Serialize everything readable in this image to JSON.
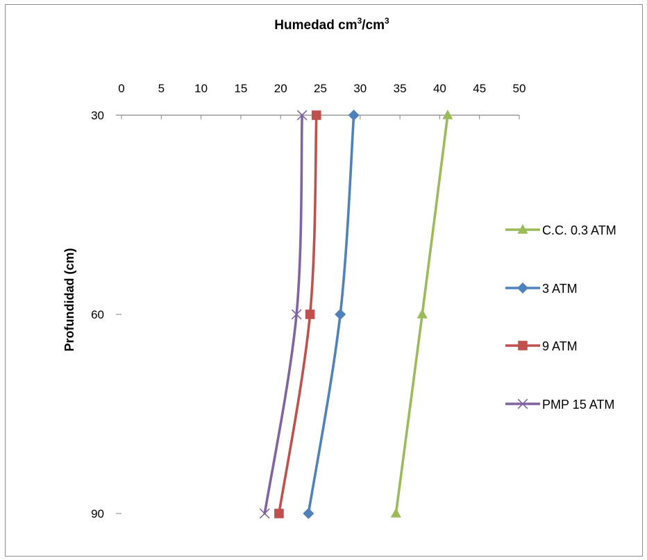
{
  "chart_data": {
    "type": "line",
    "title": "Humedad cm",
    "title_sup": "3",
    "title_mid": "/cm",
    "title_sup2": "3",
    "ylabel": "Profundidad (cm)",
    "x_ticks": [
      "0",
      "5",
      "10",
      "15",
      "20",
      "25",
      "30",
      "35",
      "40",
      "45",
      "50"
    ],
    "y_ticks": [
      "30",
      "60",
      "90"
    ],
    "xlim": [
      0,
      50
    ],
    "ylim": [
      30,
      90
    ],
    "y_inverted": true,
    "x_axis_position": "top",
    "grid": false,
    "legend_position": "right",
    "y": [
      30,
      60,
      90
    ],
    "series": [
      {
        "name": "C.C. 0.3 ATM",
        "marker": "triangle",
        "color": "#9bbb59",
        "values": [
          41.0,
          37.8,
          34.5
        ]
      },
      {
        "name": "3 ATM",
        "marker": "diamond",
        "color": "#4f81bd",
        "values": [
          29.2,
          27.5,
          23.5
        ]
      },
      {
        "name": "9 ATM",
        "marker": "square",
        "color": "#c0504d",
        "values": [
          24.5,
          23.7,
          19.8
        ]
      },
      {
        "name": "PMP 15 ATM",
        "marker": "x",
        "color": "#8064a2",
        "values": [
          22.7,
          22.0,
          18.0
        ]
      }
    ]
  }
}
